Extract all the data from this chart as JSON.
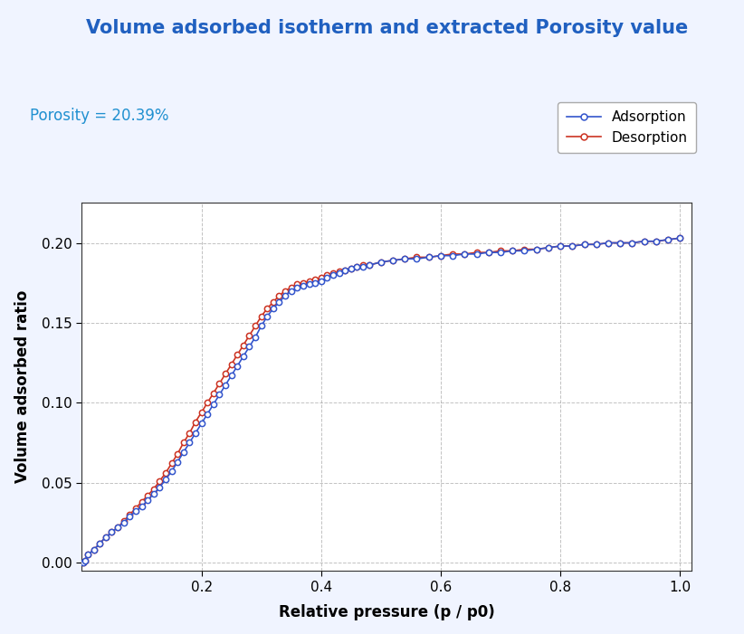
{
  "title": "Volume adsorbed isotherm and extracted Porosity value",
  "xlabel": "Relative pressure (p / p0)",
  "ylabel": "Volume adsorbed ratio",
  "porosity_label": "Porosity = 20.39%",
  "title_color": "#2060c0",
  "porosity_color": "#2090d0",
  "adsorption_color": "#3355cc",
  "desorption_color": "#cc3322",
  "background_color": "#f0f4ff",
  "plot_bg_color": "#ffffff",
  "grid_color": "#999999",
  "legend_labels": [
    "Adsorption",
    "Desorption"
  ],
  "adsorption_x": [
    0.002,
    0.005,
    0.01,
    0.02,
    0.03,
    0.04,
    0.05,
    0.06,
    0.07,
    0.08,
    0.09,
    0.1,
    0.11,
    0.12,
    0.13,
    0.14,
    0.15,
    0.16,
    0.17,
    0.18,
    0.19,
    0.2,
    0.21,
    0.22,
    0.23,
    0.24,
    0.25,
    0.26,
    0.27,
    0.28,
    0.29,
    0.3,
    0.31,
    0.32,
    0.33,
    0.34,
    0.35,
    0.36,
    0.37,
    0.38,
    0.39,
    0.4,
    0.41,
    0.42,
    0.43,
    0.44,
    0.45,
    0.46,
    0.47,
    0.48,
    0.5,
    0.52,
    0.54,
    0.56,
    0.58,
    0.6,
    0.62,
    0.64,
    0.66,
    0.68,
    0.7,
    0.72,
    0.74,
    0.76,
    0.78,
    0.8,
    0.82,
    0.84,
    0.86,
    0.88,
    0.9,
    0.92,
    0.94,
    0.96,
    0.98,
    1.0
  ],
  "adsorption_y": [
    0.0,
    0.001,
    0.005,
    0.008,
    0.012,
    0.016,
    0.019,
    0.022,
    0.025,
    0.029,
    0.032,
    0.035,
    0.039,
    0.043,
    0.047,
    0.052,
    0.057,
    0.063,
    0.069,
    0.075,
    0.081,
    0.087,
    0.093,
    0.099,
    0.105,
    0.111,
    0.117,
    0.123,
    0.129,
    0.135,
    0.141,
    0.148,
    0.154,
    0.159,
    0.163,
    0.167,
    0.17,
    0.172,
    0.173,
    0.174,
    0.175,
    0.176,
    0.178,
    0.18,
    0.181,
    0.183,
    0.184,
    0.185,
    0.185,
    0.186,
    0.188,
    0.189,
    0.19,
    0.19,
    0.191,
    0.192,
    0.192,
    0.193,
    0.193,
    0.194,
    0.194,
    0.195,
    0.195,
    0.196,
    0.197,
    0.198,
    0.198,
    0.199,
    0.199,
    0.2,
    0.2,
    0.2,
    0.201,
    0.201,
    0.202,
    0.203
  ],
  "desorption_x": [
    0.002,
    0.005,
    0.01,
    0.02,
    0.03,
    0.04,
    0.05,
    0.06,
    0.07,
    0.08,
    0.09,
    0.1,
    0.11,
    0.12,
    0.13,
    0.14,
    0.15,
    0.16,
    0.17,
    0.18,
    0.19,
    0.2,
    0.21,
    0.22,
    0.23,
    0.24,
    0.25,
    0.26,
    0.27,
    0.28,
    0.29,
    0.3,
    0.31,
    0.32,
    0.33,
    0.34,
    0.35,
    0.36,
    0.37,
    0.38,
    0.39,
    0.4,
    0.41,
    0.42,
    0.43,
    0.44,
    0.45,
    0.46,
    0.47,
    0.48,
    0.5,
    0.52,
    0.54,
    0.56,
    0.58,
    0.6,
    0.62,
    0.64,
    0.66,
    0.68,
    0.7,
    0.72,
    0.74,
    0.76,
    0.78,
    0.8,
    0.82,
    0.84,
    0.86,
    0.88,
    0.9,
    0.92,
    0.94,
    0.96,
    0.98,
    1.0
  ],
  "desorption_y": [
    0.0,
    0.001,
    0.005,
    0.008,
    0.012,
    0.016,
    0.019,
    0.022,
    0.026,
    0.03,
    0.034,
    0.038,
    0.042,
    0.046,
    0.051,
    0.056,
    0.062,
    0.068,
    0.075,
    0.081,
    0.088,
    0.094,
    0.1,
    0.106,
    0.112,
    0.118,
    0.124,
    0.13,
    0.136,
    0.142,
    0.148,
    0.154,
    0.159,
    0.163,
    0.167,
    0.17,
    0.172,
    0.174,
    0.175,
    0.176,
    0.177,
    0.178,
    0.18,
    0.181,
    0.182,
    0.183,
    0.184,
    0.185,
    0.186,
    0.186,
    0.188,
    0.189,
    0.19,
    0.191,
    0.191,
    0.192,
    0.193,
    0.193,
    0.194,
    0.194,
    0.195,
    0.195,
    0.196,
    0.196,
    0.197,
    0.198,
    0.198,
    0.199,
    0.199,
    0.2,
    0.2,
    0.2,
    0.201,
    0.201,
    0.202,
    0.203
  ],
  "xlim": [
    0.0,
    1.02
  ],
  "ylim": [
    -0.005,
    0.225
  ],
  "xticks": [
    0.2,
    0.4,
    0.6,
    0.8,
    1.0
  ],
  "yticks": [
    0.0,
    0.05,
    0.1,
    0.15,
    0.2
  ],
  "figsize": [
    8.22,
    7.01
  ],
  "dpi": 100
}
